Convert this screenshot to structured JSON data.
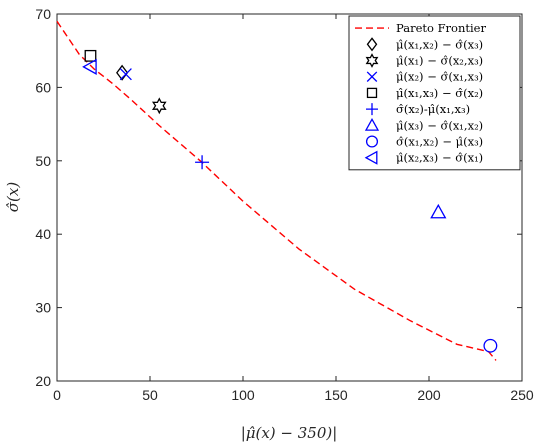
{
  "chart_data": {
    "type": "scatter",
    "xlabel": "|μ̂(x) − 350)|",
    "ylabel": "σ̂(x)",
    "xlim": [
      0,
      250
    ],
    "ylim": [
      20,
      70
    ],
    "xticks": [
      "0",
      "50",
      "100",
      "150",
      "200",
      "250"
    ],
    "yticks": [
      "20",
      "30",
      "40",
      "50",
      "60",
      "70"
    ],
    "grid": false,
    "legend_position": "top-right",
    "frontier": {
      "name": "Pareto Frontier",
      "color": "#ff0000",
      "style": "dashed",
      "x": [
        0,
        12,
        20,
        30,
        40,
        55,
        77,
        100,
        130,
        160,
        190,
        215,
        232,
        236
      ],
      "y": [
        69,
        64.5,
        62.5,
        60.5,
        58.3,
        54.8,
        50,
        44.5,
        38,
        32.5,
        28.2,
        25,
        24,
        22.8
      ]
    },
    "series": [
      {
        "name": "μ̂(x₁,x₂) − σ̂(x₃)",
        "marker": "diamond",
        "color": "#000000",
        "x": [
          35
        ],
        "y": [
          62
        ]
      },
      {
        "name": "μ̂(x₁) − σ̂(x₂,x₃)",
        "marker": "hexagram",
        "color": "#000000",
        "x": [
          55
        ],
        "y": [
          57.5
        ]
      },
      {
        "name": "μ̂(x₂) − σ̂(x₁,x₃)",
        "marker": "x",
        "color": "#0000ff",
        "x": [
          37
        ],
        "y": [
          61.8
        ]
      },
      {
        "name": "μ̂(x₁,x₃) − σ̂(x₂)",
        "marker": "square",
        "color": "#000000",
        "x": [
          18
        ],
        "y": [
          64.3
        ]
      },
      {
        "name": "σ̂(x₂)-μ̂(x₁,x₃)",
        "marker": "plus",
        "color": "#0000ff",
        "x": [
          78
        ],
        "y": [
          49.8
        ]
      },
      {
        "name": "μ̂(x₃) − σ̂(x₁,x₂)",
        "marker": "triangle-up",
        "color": "#0000ff",
        "x": [
          205
        ],
        "y": [
          43
        ]
      },
      {
        "name": "σ̂(x₁,x₂) − μ̂(x₃)",
        "marker": "circle",
        "color": "#0000ff",
        "x": [
          233
        ],
        "y": [
          24.8
        ]
      },
      {
        "name": "μ̂(x₂,x₃) − σ̂(x₁)",
        "marker": "triangle-left",
        "color": "#0000ff",
        "x": [
          18
        ],
        "y": [
          62.8
        ]
      }
    ]
  }
}
